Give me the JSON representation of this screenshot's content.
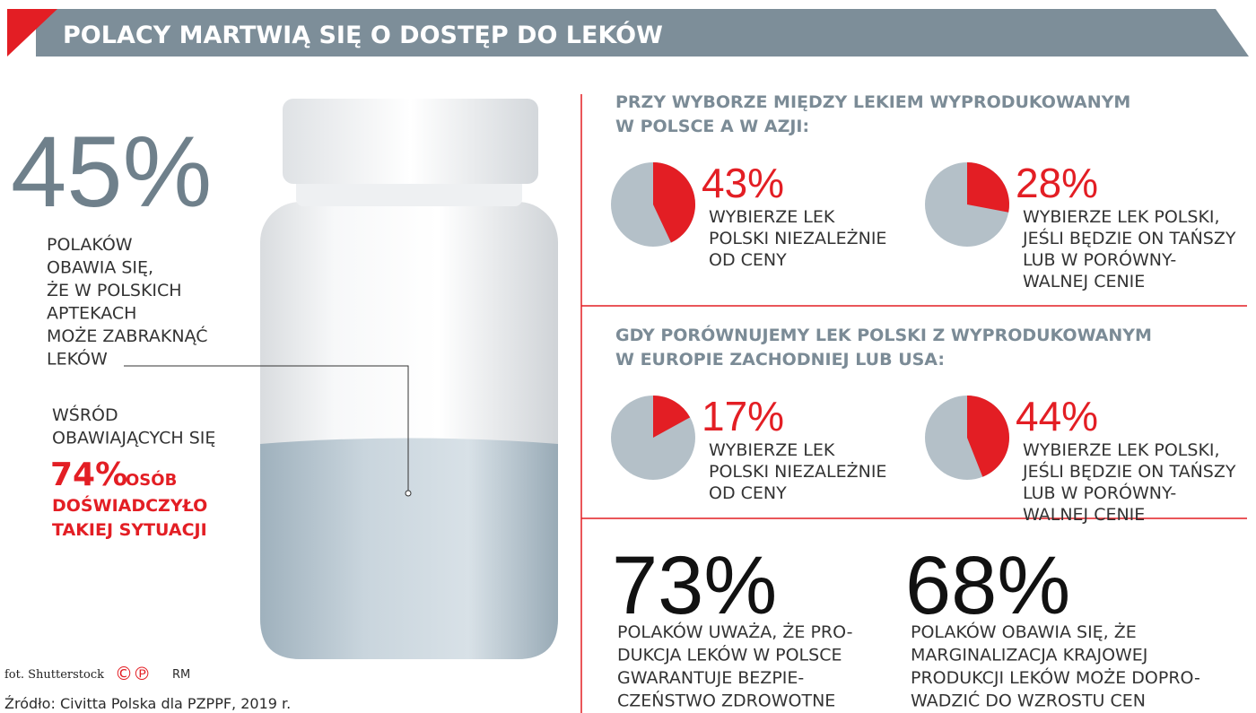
{
  "header": {
    "title": "POLACY MARTWIĄ SIĘ O DOSTĘP DO LEKÓW"
  },
  "left": {
    "big_value": "45%",
    "text": [
      "POLAKÓW",
      "OBAWIA SIĘ,",
      "ŻE W POLSKICH",
      "APTEKACH",
      "MOŻE ZABRAKNĄĆ",
      "LEKÓW"
    ],
    "sub_text": [
      "WŚRÓD",
      "OBAWIAJĄCYCH SIĘ"
    ],
    "highlight_value": "74%",
    "highlight_unit": "OSÓB",
    "highlight_text": [
      "DOŚWIADCZYŁO",
      "TAKIEJ SYTUACJI"
    ]
  },
  "sections": [
    {
      "title": [
        "PRZY WYBORZE MIĘDZY LEKIEM WYPRODUKOWANYM",
        "W POLSCE A W AZJI:"
      ],
      "items": [
        {
          "value": 43,
          "label": "43%",
          "text": [
            "WYBIERZE LEK",
            "POLSKI NIEZALEŻNIE",
            "OD CENY"
          ]
        },
        {
          "value": 28,
          "label": "28%",
          "text": [
            "WYBIERZE LEK POLSKI,",
            "JEŚLI BĘDZIE ON TAŃSZY",
            "LUB W PORÓWNY-",
            "WALNEJ CENIE"
          ]
        }
      ]
    },
    {
      "title": [
        "GDY PORÓWNUJEMY LEK POLSKI Z WYPRODUKOWANYM",
        "W EUROPIE ZACHODNIEJ LUB USA:"
      ],
      "items": [
        {
          "value": 17,
          "label": "17%",
          "text": [
            "WYBIERZE LEK",
            "POLSKI NIEZALEŻNIE",
            "OD CENY"
          ]
        },
        {
          "value": 44,
          "label": "44%",
          "text": [
            "WYBIERZE LEK POLSKI,",
            "JEŚLI BĘDZIE ON TAŃSZY",
            "LUB W PORÓWNY-",
            "WALNEJ CENIE"
          ]
        }
      ]
    }
  ],
  "bottom": [
    {
      "value": "73%",
      "text": [
        "POLAKÓW UWAŻA, ŻE PRO-",
        "DUKCJA LEKÓW W POLSCE",
        "GWARANTUJE BEZPIE-",
        "CZEŃSTWO ZDROWOTNE"
      ]
    },
    {
      "value": "68%",
      "text": [
        "POLAKÓW OBAWIA SIĘ, ŻE",
        "MARGINALIZACJA KRAJOWEJ",
        "PRODUKCJI LEKÓW MOŻE DOPRO-",
        "WADZIĆ DO WZROSTU CEN"
      ]
    }
  ],
  "credits": {
    "photo": "fot. Shutterstock",
    "marks": "©℗",
    "author": "RM",
    "source": "Źródło: Civitta Polska dla PZPPF, 2019 r."
  }
}
